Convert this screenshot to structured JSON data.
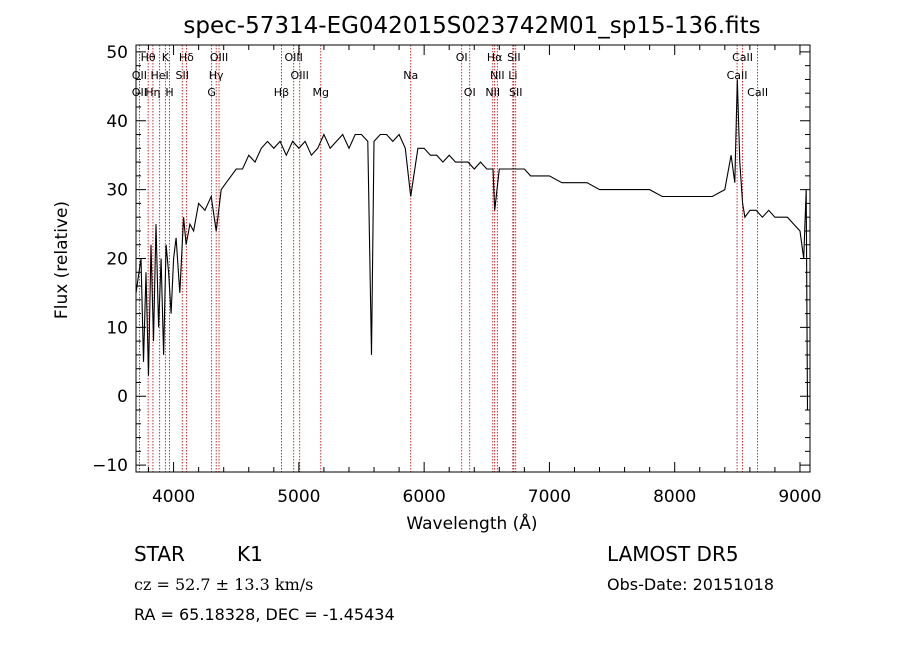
{
  "chart_data": {
    "type": "line",
    "title": "spec-57314-EG042015S023742M01_sp15-136.fits",
    "xlabel": "Wavelength (Å)",
    "ylabel": "Flux (relative)",
    "xlim": [
      3700,
      9080
    ],
    "ylim": [
      -11,
      51
    ],
    "x_ticks": [
      4000,
      5000,
      6000,
      7000,
      8000,
      9000
    ],
    "y_ticks": [
      -10,
      0,
      10,
      20,
      30,
      40,
      50
    ],
    "grid": false,
    "series": [
      {
        "color": "#000000",
        "x": [
          3700,
          3740,
          3760,
          3780,
          3800,
          3820,
          3840,
          3860,
          3880,
          3900,
          3920,
          3940,
          3960,
          3980,
          4000,
          4020,
          4050,
          4080,
          4100,
          4130,
          4160,
          4200,
          4250,
          4300,
          4340,
          4380,
          4420,
          4460,
          4500,
          4550,
          4600,
          4650,
          4700,
          4750,
          4800,
          4850,
          4900,
          4950,
          5000,
          5050,
          5100,
          5150,
          5200,
          5250,
          5300,
          5350,
          5400,
          5450,
          5500,
          5550,
          5580,
          5600,
          5650,
          5700,
          5750,
          5800,
          5850,
          5893,
          5950,
          6000,
          6050,
          6100,
          6150,
          6200,
          6250,
          6300,
          6350,
          6400,
          6450,
          6500,
          6550,
          6563,
          6600,
          6650,
          6700,
          6750,
          6800,
          6850,
          6900,
          6950,
          7000,
          7100,
          7200,
          7300,
          7400,
          7500,
          7600,
          7700,
          7800,
          7900,
          8000,
          8100,
          8200,
          8300,
          8400,
          8450,
          8480,
          8500,
          8520,
          8542,
          8560,
          8600,
          8650,
          8700,
          8750,
          8800,
          8850,
          8900,
          8950,
          9000,
          9030,
          9050,
          9060
        ],
        "y": [
          15,
          20,
          5,
          18,
          3,
          22,
          8,
          25,
          10,
          20,
          6,
          22,
          18,
          12,
          20,
          23,
          15,
          26,
          22,
          25,
          24,
          28,
          27,
          29,
          24,
          30,
          31,
          32,
          33,
          33,
          35,
          34,
          36,
          37,
          36,
          37,
          35,
          37,
          36,
          37,
          35,
          36,
          38,
          36,
          37,
          38,
          36,
          38,
          38,
          37,
          6,
          37,
          38,
          38,
          37,
          38,
          36,
          29,
          36,
          36,
          35,
          35,
          34,
          35,
          34,
          34,
          34,
          33,
          34,
          33,
          33,
          27,
          33,
          33,
          33,
          33,
          33,
          32,
          32,
          32,
          32,
          31,
          31,
          31,
          30,
          30,
          30,
          30,
          30,
          29,
          29,
          29,
          29,
          29,
          30,
          35,
          31,
          46,
          34,
          28,
          26,
          27,
          27,
          26,
          27,
          26,
          26,
          26,
          25,
          24,
          20,
          30,
          -2
        ]
      }
    ],
    "line_labels": [
      {
        "label": "Hθ",
        "x": 3797,
        "row": 0
      },
      {
        "label": "K",
        "x": 3934,
        "row": 0
      },
      {
        "label": "Hδ",
        "x": 4102,
        "row": 0
      },
      {
        "label": "OIII",
        "x": 4363,
        "row": 0
      },
      {
        "label": "OIII",
        "x": 4959,
        "row": 0
      },
      {
        "label": "OI",
        "x": 6300,
        "row": 0
      },
      {
        "label": "Hα",
        "x": 6563,
        "row": 0
      },
      {
        "label": "SII",
        "x": 6716,
        "row": 0
      },
      {
        "label": "CaII",
        "x": 8542,
        "row": 0
      },
      {
        "label": "OII",
        "x": 3727,
        "row": 1
      },
      {
        "label": "HeI",
        "x": 3889,
        "row": 1
      },
      {
        "label": "SII",
        "x": 4069,
        "row": 1
      },
      {
        "label": "Hγ",
        "x": 4340,
        "row": 1
      },
      {
        "label": "OIII",
        "x": 5007,
        "row": 1
      },
      {
        "label": "Na",
        "x": 5893,
        "row": 1
      },
      {
        "label": "NII",
        "x": 6584,
        "row": 1
      },
      {
        "label": "Li",
        "x": 6708,
        "row": 1
      },
      {
        "label": "CaII",
        "x": 8498,
        "row": 1
      },
      {
        "label": "OII",
        "x": 3727,
        "row": 2
      },
      {
        "label": "Hη",
        "x": 3835,
        "row": 2
      },
      {
        "label": "H",
        "x": 3968,
        "row": 2
      },
      {
        "label": "G",
        "x": 4304,
        "row": 2
      },
      {
        "label": "Hβ",
        "x": 4861,
        "row": 2
      },
      {
        "label": "Mg",
        "x": 5175,
        "row": 2
      },
      {
        "label": "OI",
        "x": 6364,
        "row": 2
      },
      {
        "label": "NII",
        "x": 6548,
        "row": 2
      },
      {
        "label": "SII",
        "x": 6731,
        "row": 2
      },
      {
        "label": "CaII",
        "x": 8662,
        "row": 2
      }
    ],
    "reference_lines_x": [
      3727,
      3797,
      3835,
      3889,
      3934,
      3968,
      4069,
      4102,
      4304,
      4340,
      4363,
      4861,
      4959,
      5007,
      5175,
      5893,
      6300,
      6364,
      6548,
      6563,
      6584,
      6708,
      6716,
      6731,
      8498,
      8542,
      8662
    ]
  },
  "info": {
    "object_class": "STAR",
    "subclass": "K1",
    "survey": "LAMOST DR5",
    "cz": "cz = 52.7 ± 13.3 km/s",
    "obs_date": "Obs-Date: 20151018",
    "coords": "RA =  65.18328, DEC =  -1.45434"
  }
}
